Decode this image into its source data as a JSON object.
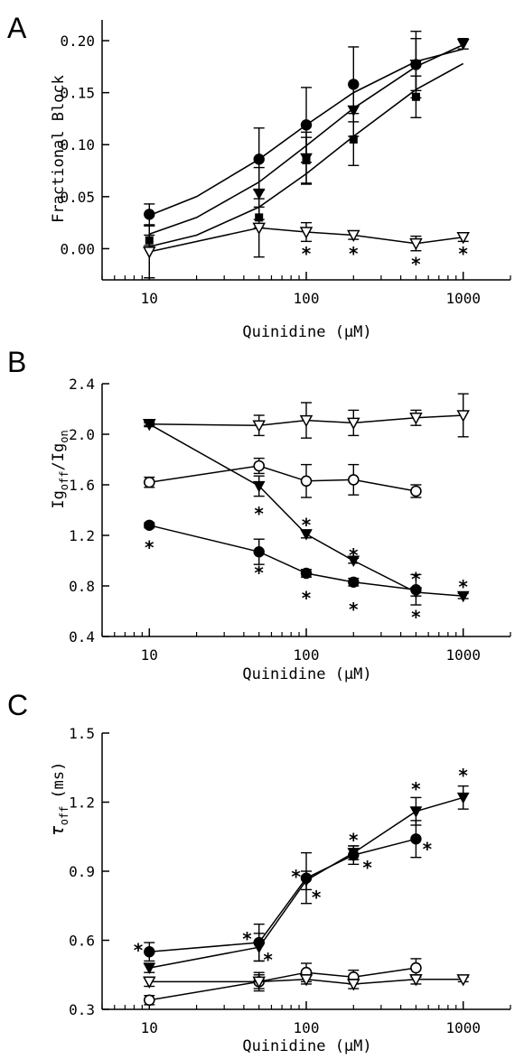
{
  "chart_data": [
    {
      "type": "line",
      "panel_label": "A",
      "xlabel": "Quinidine (μM)",
      "ylabel": "Fractional Block",
      "xscale": "log",
      "xlim": [
        5,
        2000
      ],
      "ylim": [
        -0.03,
        0.22
      ],
      "xticks": [
        10,
        100,
        1000
      ],
      "xtick_labels": [
        "10",
        "100",
        "1000"
      ],
      "yticks": [
        0.0,
        0.05,
        0.1,
        0.15,
        0.2
      ],
      "ytick_labels": [
        "0.00",
        "0.05",
        "0.10",
        "0.15",
        "0.20"
      ],
      "series": [
        {
          "marker": "filled-circle",
          "connect": "fit",
          "x": [
            10,
            50,
            100,
            200,
            500
          ],
          "y": [
            0.033,
            0.086,
            0.119,
            0.158,
            0.177
          ],
          "err": [
            0.01,
            0.03,
            0.036,
            0.036,
            0.032
          ]
        },
        {
          "marker": "filled-triangle-down",
          "connect": "fit",
          "x": [
            10,
            50,
            100,
            200,
            500,
            1000
          ],
          "y": [
            -0.003,
            0.053,
            0.087,
            0.133,
            0.177,
            0.197
          ],
          "err": [
            0.025,
            0.025,
            0.025,
            0.025,
            0.025,
            0.005
          ]
        },
        {
          "marker": "filled-square",
          "connect": "fit",
          "x": [
            10,
            50,
            100,
            200,
            500
          ],
          "y": [
            0.008,
            0.03,
            0.085,
            0.105,
            0.146
          ],
          "err": [
            0.005,
            0.01,
            0.022,
            0.025,
            0.02
          ]
        },
        {
          "marker": "open-triangle-down",
          "connect": "line",
          "x": [
            10,
            50,
            100,
            200,
            500,
            1000
          ],
          "y": [
            -0.003,
            0.02,
            0.016,
            0.013,
            0.005,
            0.011
          ],
          "err": [
            0.025,
            0.028,
            0.009,
            0.004,
            0.007,
            0.004
          ]
        }
      ],
      "fit_curves": [
        {
          "x": [
            10,
            20,
            50,
            100,
            200,
            500,
            1000
          ],
          "y": [
            0.032,
            0.05,
            0.086,
            0.119,
            0.15,
            0.18,
            0.192
          ]
        },
        {
          "x": [
            10,
            20,
            50,
            100,
            200,
            500,
            1000
          ],
          "y": [
            0.014,
            0.03,
            0.064,
            0.099,
            0.135,
            0.175,
            0.196
          ]
        },
        {
          "x": [
            10,
            20,
            50,
            100,
            200,
            500,
            1000
          ],
          "y": [
            0.002,
            0.013,
            0.04,
            0.072,
            0.108,
            0.153,
            0.178
          ]
        }
      ],
      "annotations": [
        {
          "text": "*",
          "x": 100,
          "y": -0.004
        },
        {
          "text": "*",
          "x": 200,
          "y": -0.004
        },
        {
          "text": "*",
          "x": 500,
          "y": -0.014
        },
        {
          "text": "*",
          "x": 1000,
          "y": -0.004
        }
      ]
    },
    {
      "type": "line",
      "panel_label": "B",
      "xlabel": "Quinidine (μM)",
      "ylabel_main": "Ig",
      "ylabel_sub1": "off",
      "ylabel_slash": "/Ig",
      "ylabel_sub2": "on",
      "xscale": "log",
      "xlim": [
        5,
        2000
      ],
      "ylim": [
        0.4,
        2.4
      ],
      "xticks": [
        10,
        100,
        1000
      ],
      "xtick_labels": [
        "10",
        "100",
        "1000"
      ],
      "yticks": [
        0.4,
        0.8,
        1.2,
        1.6,
        2.0,
        2.4
      ],
      "ytick_labels": [
        "0.4",
        "0.8",
        "1.2",
        "1.6",
        "2.0",
        "2.4"
      ],
      "series": [
        {
          "marker": "open-triangle-down",
          "connect": "line",
          "x": [
            10,
            50,
            100,
            200,
            500,
            1000
          ],
          "y": [
            2.08,
            2.07,
            2.11,
            2.09,
            2.13,
            2.15
          ],
          "err": [
            0.02,
            0.08,
            0.14,
            0.1,
            0.06,
            0.17
          ]
        },
        {
          "marker": "open-circle",
          "connect": "line",
          "x": [
            10,
            50,
            100,
            200,
            500
          ],
          "y": [
            1.62,
            1.75,
            1.63,
            1.64,
            1.55
          ],
          "err": [
            0.04,
            0.06,
            0.13,
            0.12,
            0.05
          ]
        },
        {
          "marker": "filled-triangle-down",
          "connect": "line",
          "x": [
            10,
            50,
            100,
            200,
            500,
            1000
          ],
          "y": [
            2.08,
            1.59,
            1.21,
            1.0,
            0.75,
            0.72
          ],
          "err": [
            0.01,
            0.08,
            0.03,
            0.02,
            0.03,
            0.02
          ]
        },
        {
          "marker": "filled-circle",
          "connect": "line",
          "x": [
            10,
            50,
            100,
            200,
            500
          ],
          "y": [
            1.28,
            1.07,
            0.9,
            0.83,
            0.77
          ],
          "err": [
            0.02,
            0.1,
            0.03,
            0.03,
            0.12
          ]
        }
      ],
      "annotations": [
        {
          "text": "*",
          "x": 10,
          "y": 1.11
        },
        {
          "text": "*",
          "x": 50,
          "y": 1.38
        },
        {
          "text": "*",
          "x": 100,
          "y": 1.29
        },
        {
          "text": "*",
          "x": 200,
          "y": 1.05
        },
        {
          "text": "*",
          "x": 500,
          "y": 0.86
        },
        {
          "text": "*",
          "x": 1000,
          "y": 0.8
        },
        {
          "text": "*",
          "x": 50,
          "y": 0.91
        },
        {
          "text": "*",
          "x": 100,
          "y": 0.71
        },
        {
          "text": "*",
          "x": 200,
          "y": 0.62
        },
        {
          "text": "*",
          "x": 500,
          "y": 0.56
        }
      ]
    },
    {
      "type": "line",
      "panel_label": "C",
      "xlabel": "Quinidine (μM)",
      "ylabel_main": "τ",
      "ylabel_sub": "off",
      "ylabel_unit": "(ms)",
      "xscale": "log",
      "xlim": [
        5,
        2000
      ],
      "ylim": [
        0.3,
        1.5
      ],
      "xticks": [
        10,
        100,
        1000
      ],
      "xtick_labels": [
        "10",
        "100",
        "1000"
      ],
      "yticks": [
        0.3,
        0.6,
        0.9,
        1.2,
        1.5
      ],
      "ytick_labels": [
        "0.3",
        "0.6",
        "0.9",
        "1.2",
        "1.5"
      ],
      "series": [
        {
          "marker": "filled-circle",
          "connect": "line",
          "x": [
            10,
            50,
            100,
            200,
            500
          ],
          "y": [
            0.55,
            0.59,
            0.87,
            0.97,
            1.04
          ],
          "err": [
            0.04,
            0.08,
            0.11,
            0.04,
            0.08
          ]
        },
        {
          "marker": "filled-triangle-down",
          "connect": "line",
          "x": [
            10,
            50,
            100,
            200,
            500,
            1000
          ],
          "y": [
            0.48,
            0.57,
            0.86,
            0.98,
            1.16,
            1.22
          ],
          "err": [
            0.02,
            0.06,
            0.04,
            0.03,
            0.06,
            0.05
          ]
        },
        {
          "marker": "open-circle",
          "connect": "line",
          "x": [
            10,
            50,
            100,
            200,
            500
          ],
          "y": [
            0.34,
            0.42,
            0.46,
            0.44,
            0.48
          ],
          "err": [
            0.02,
            0.03,
            0.04,
            0.03,
            0.04
          ]
        },
        {
          "marker": "open-triangle-down",
          "connect": "line",
          "x": [
            10,
            50,
            100,
            200,
            500,
            1000
          ],
          "y": [
            0.42,
            0.42,
            0.43,
            0.41,
            0.43,
            0.43
          ],
          "err": [
            0.02,
            0.04,
            0.02,
            0.02,
            0.02,
            0.01
          ]
        }
      ],
      "annotations": [
        {
          "text": "*",
          "x": 8.5,
          "y": 0.56
        },
        {
          "text": "*",
          "x": 42,
          "y": 0.61
        },
        {
          "text": "*",
          "x": 57,
          "y": 0.52
        },
        {
          "text": "*",
          "x": 86,
          "y": 0.88
        },
        {
          "text": "*",
          "x": 116,
          "y": 0.79
        },
        {
          "text": "*",
          "x": 200,
          "y": 1.04
        },
        {
          "text": "*",
          "x": 245,
          "y": 0.92
        },
        {
          "text": "*",
          "x": 500,
          "y": 1.26
        },
        {
          "text": "*",
          "x": 590,
          "y": 1.0
        },
        {
          "text": "*",
          "x": 1000,
          "y": 1.32
        }
      ]
    }
  ]
}
